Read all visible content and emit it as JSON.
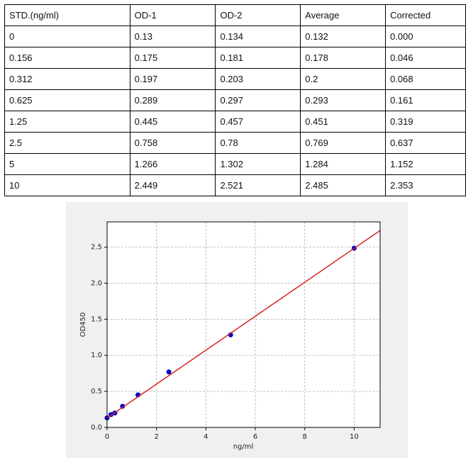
{
  "table": {
    "header": [
      "STD.(ng/ml)",
      "OD-1",
      "OD-2",
      "Average",
      "Corrected"
    ],
    "rows": [
      [
        "0",
        "0.13",
        "0.134",
        "0.132",
        "0.000"
      ],
      [
        "0.156",
        "0.175",
        "0.181",
        "0.178",
        "0.046"
      ],
      [
        "0.312",
        "0.197",
        "0.203",
        "0.2",
        "0.068"
      ],
      [
        "0.625",
        "0.289",
        "0.297",
        "0.293",
        "0.161"
      ],
      [
        "1.25",
        "0.445",
        "0.457",
        "0.451",
        "0.319"
      ],
      [
        "2.5",
        "0.758",
        "0.78",
        "0.769",
        "0.637"
      ],
      [
        "5",
        "1.266",
        "1.302",
        "1.284",
        "1.152"
      ],
      [
        "10",
        "2.449",
        "2.521",
        "2.485",
        "2.353"
      ]
    ]
  },
  "chart_data": {
    "type": "scatter",
    "x_label": "ng/ml",
    "y_label": "OD450",
    "x": [
      0,
      0.156,
      0.312,
      0.625,
      1.25,
      2.5,
      5,
      10
    ],
    "values": [
      0.132,
      0.178,
      0.2,
      0.293,
      0.451,
      0.769,
      1.284,
      2.485
    ],
    "color": "#0000cd",
    "fit": {
      "x": [
        0,
        11.05
      ],
      "values": [
        0.13,
        2.73
      ],
      "color": "#d62728"
    },
    "xlim": [
      0,
      11.05
    ],
    "ylim": [
      0,
      2.85
    ],
    "xticks": [
      0,
      2,
      4,
      6,
      8,
      10
    ],
    "yticks": [
      {
        "value": 0,
        "label": "0.0"
      },
      0.5,
      {
        "value": 1,
        "label": "1.0"
      },
      1.5,
      {
        "value": 2,
        "label": "2.0"
      },
      2.5
    ],
    "grid": true
  }
}
